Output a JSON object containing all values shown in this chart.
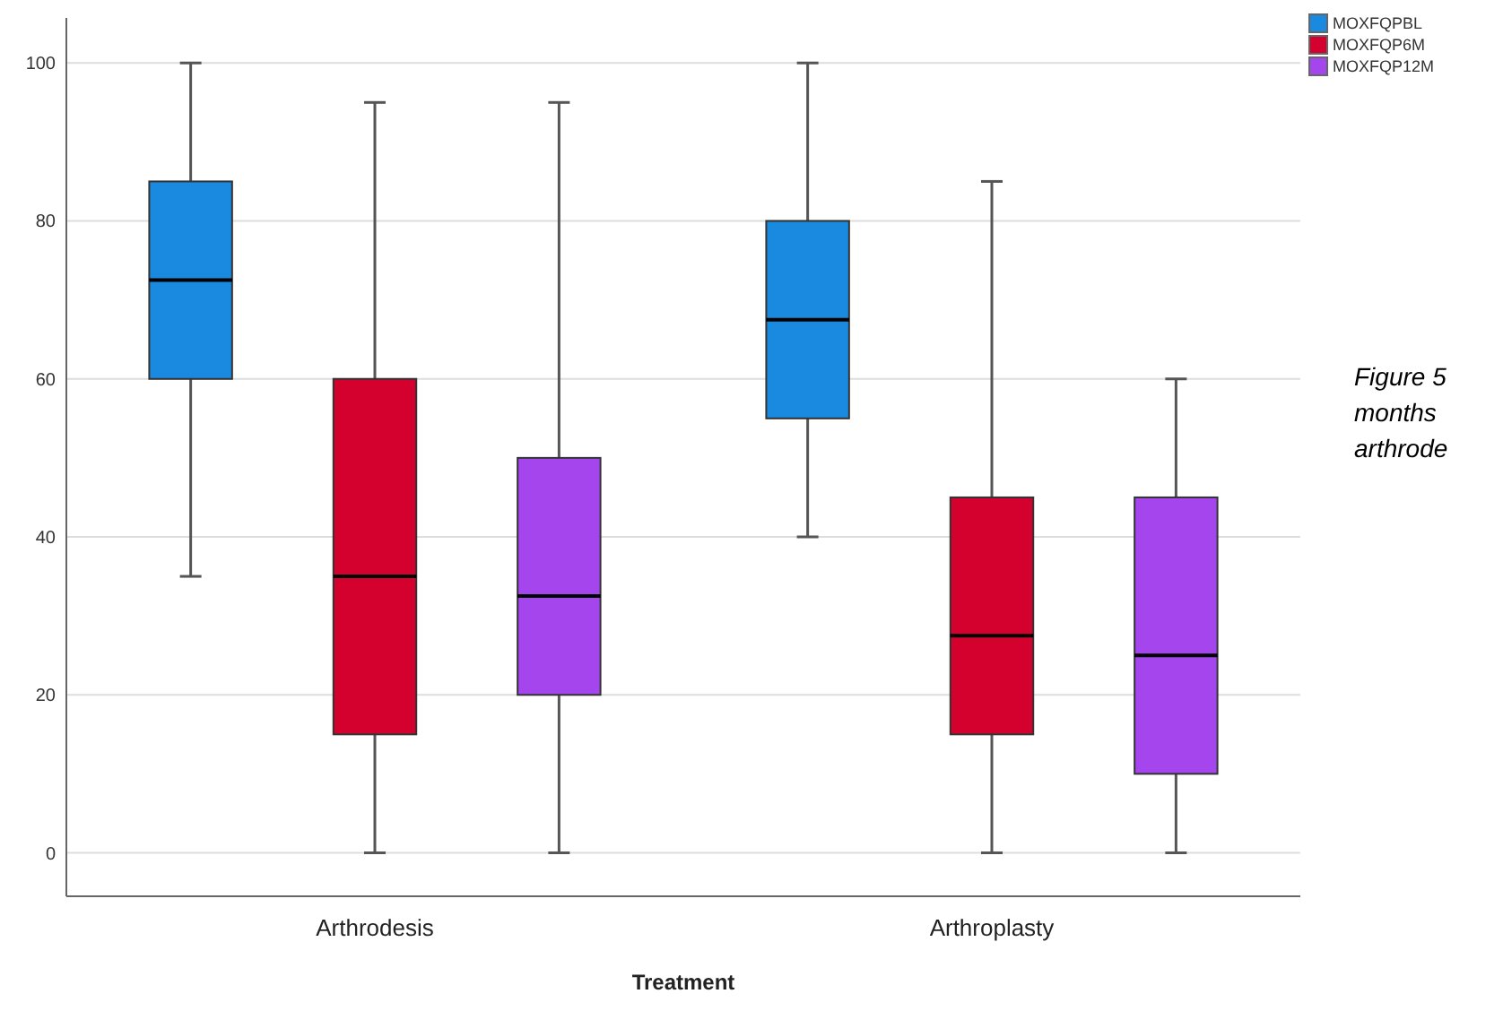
{
  "chart_data": {
    "type": "box",
    "xlabel": "Treatment",
    "categories": [
      "Arthrodesis",
      "Arthroplasty"
    ],
    "series": [
      {
        "name": "MOXFQPBL",
        "color": "#1a8ae0",
        "boxes": [
          {
            "low": 35,
            "q1": 60,
            "median": 72.5,
            "q3": 85,
            "high": 100
          },
          {
            "low": 40,
            "q1": 55,
            "median": 67.5,
            "q3": 80,
            "high": 100
          }
        ]
      },
      {
        "name": "MOXFQP6M",
        "color": "#d4002e",
        "boxes": [
          {
            "low": 0,
            "q1": 15,
            "median": 35,
            "q3": 60,
            "high": 95
          },
          {
            "low": 0,
            "q1": 15,
            "median": 27.5,
            "q3": 45,
            "high": 85
          }
        ]
      },
      {
        "name": "MOXFQP12M",
        "color": "#a545ee",
        "boxes": [
          {
            "low": 0,
            "q1": 20,
            "median": 32.5,
            "q3": 50,
            "high": 95
          },
          {
            "low": 0,
            "q1": 10,
            "median": 25,
            "q3": 45,
            "high": 60
          }
        ]
      }
    ],
    "ylim": [
      -5.5,
      105.7
    ],
    "yticks": [
      0,
      20,
      40,
      60,
      80,
      100
    ],
    "grid": "y",
    "legend": "top right",
    "annotations": [
      "Figure 5",
      "months",
      "arthrode"
    ]
  }
}
